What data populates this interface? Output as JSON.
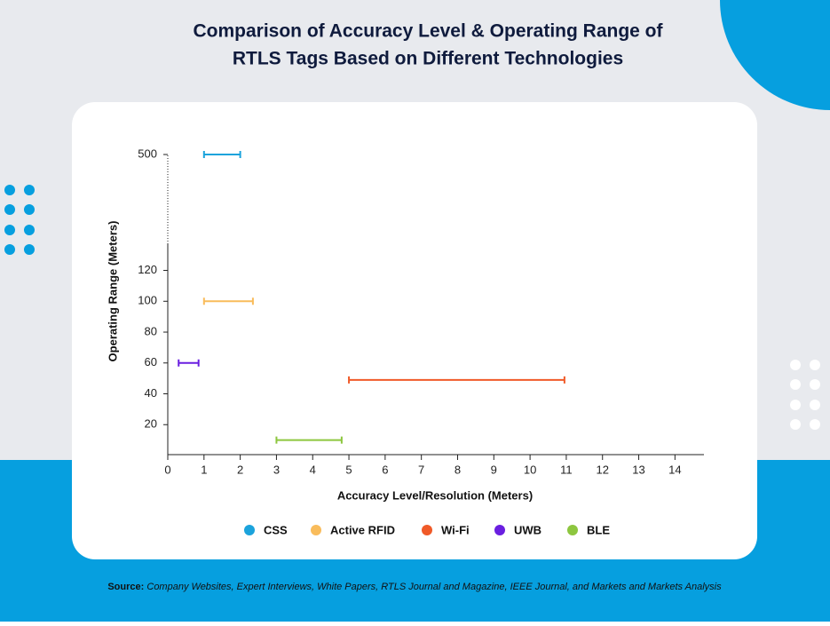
{
  "chart_data": {
    "type": "range",
    "title_lines": [
      "Comparison of Accuracy Level & Operating Range of",
      "RTLS Tags Based on Different Technologies"
    ],
    "x_label": "Accuracy Level/Resolution (Meters)",
    "y_label": "Operating Range (Meters)",
    "xlim": [
      0,
      14.8
    ],
    "xticks": [
      0,
      1,
      2,
      3,
      4,
      5,
      6,
      7,
      8,
      9,
      10,
      11,
      12,
      13,
      14
    ],
    "ylim": [
      0,
      500
    ],
    "ybreak": [
      137,
      500
    ],
    "yticks": [
      20,
      40,
      60,
      80,
      100,
      120,
      500
    ],
    "series": [
      {
        "name": "CSS",
        "color": "#1ba3dc",
        "y": 500,
        "x": [
          1,
          2
        ]
      },
      {
        "name": "Active RFID",
        "color": "#f9bc5b",
        "y": 100,
        "x": [
          1,
          2.35
        ]
      },
      {
        "name": "Wi-Fi",
        "color": "#f05a28",
        "y": 49,
        "x": [
          5,
          10.95
        ]
      },
      {
        "name": "UWB",
        "color": "#6a1fe0",
        "y": 60,
        "x": [
          0.3,
          0.85
        ]
      },
      {
        "name": "BLE",
        "color": "#8dc63f",
        "y": 10,
        "x": [
          3,
          4.8
        ]
      }
    ],
    "source_label": "Source:",
    "source_text": "Company Websites, Expert Interviews, White Papers, RTLS Journal and Magazine, IEEE Journal, and Markets and Markets Analysis"
  }
}
